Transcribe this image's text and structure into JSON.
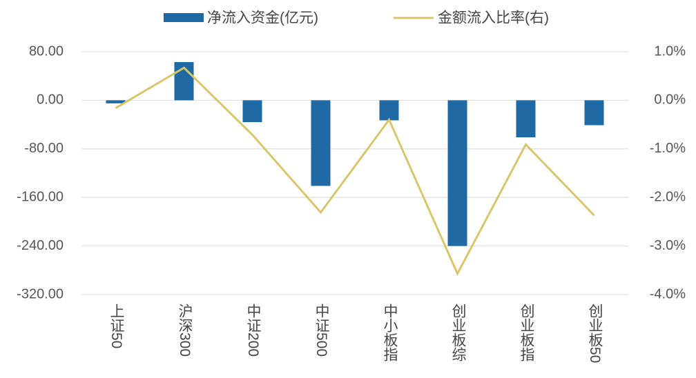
{
  "chart_data": {
    "type": "bar+line",
    "categories": [
      "上证50",
      "沪深300",
      "中证200",
      "中证500",
      "中小板指",
      "创业板综",
      "创业板指",
      "创业板50"
    ],
    "series": [
      {
        "name": "净流入资金(亿元)",
        "type": "bar",
        "color": "#1f6aa5",
        "values": [
          -5,
          63,
          -36,
          -141,
          -33,
          -240,
          -61,
          -41
        ]
      },
      {
        "name": "金额流入比率(右)",
        "type": "line",
        "axis": "y2",
        "color": "#d9c66a",
        "values": [
          -0.16,
          0.67,
          -0.71,
          -2.31,
          -0.4,
          -3.57,
          -0.91,
          -2.37
        ]
      }
    ],
    "ylim": [
      -320,
      80
    ],
    "yticks": [
      {
        "value": 80,
        "label": "80.00"
      },
      {
        "value": 0,
        "label": "0.00"
      },
      {
        "value": -80,
        "label": "-80.00"
      },
      {
        "value": -160,
        "label": "-160.00"
      },
      {
        "value": -240,
        "label": "-240.00"
      },
      {
        "value": -320,
        "label": "-320.00"
      }
    ],
    "y2lim": [
      -4,
      1
    ],
    "y2ticks": [
      {
        "value": 1,
        "label": "1.0%"
      },
      {
        "value": 0,
        "label": "0.0%"
      },
      {
        "value": -1,
        "label": "-1.0%"
      },
      {
        "value": -2,
        "label": "-2.0%"
      },
      {
        "value": -3,
        "label": "-3.0%"
      },
      {
        "value": -4,
        "label": "-4.0%"
      }
    ],
    "grid": true
  }
}
